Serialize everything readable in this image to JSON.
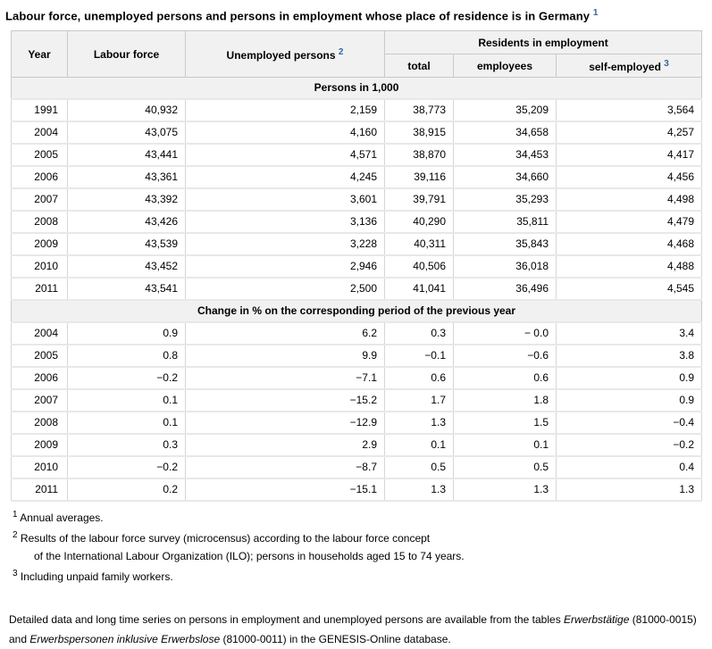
{
  "title": {
    "text": "Labour force, unemployed persons and persons in employment whose place of residence is in Germany",
    "footnote_ref": "1"
  },
  "table": {
    "columns": {
      "year": "Year",
      "labour_force": "Labour force",
      "unemployed": "Unemployed persons",
      "unemployed_ref": "2",
      "residents_group": "Residents in employment",
      "total": "total",
      "employees": "employees",
      "self_employed": "self-employed",
      "self_employed_ref": "3"
    },
    "sections": [
      {
        "label": "Persons in 1,000",
        "rows": [
          [
            "1991",
            "40,932",
            "2,159",
            "38,773",
            "35,209",
            "3,564"
          ],
          [
            "2004",
            "43,075",
            "4,160",
            "38,915",
            "34,658",
            "4,257"
          ],
          [
            "2005",
            "43,441",
            "4,571",
            "38,870",
            "34,453",
            "4,417"
          ],
          [
            "2006",
            "43,361",
            "4,245",
            "39,116",
            "34,660",
            "4,456"
          ],
          [
            "2007",
            "43,392",
            "3,601",
            "39,791",
            "35,293",
            "4,498"
          ],
          [
            "2008",
            "43,426",
            "3,136",
            "40,290",
            "35,811",
            "4,479"
          ],
          [
            "2009",
            "43,539",
            "3,228",
            "40,311",
            "35,843",
            "4,468"
          ],
          [
            "2010",
            "43,452",
            "2,946",
            "40,506",
            "36,018",
            "4,488"
          ],
          [
            "2011",
            "43,541",
            "2,500",
            "41,041",
            "36,496",
            "4,545"
          ]
        ]
      },
      {
        "label": "Change in % on the corresponding period of the previous year",
        "rows": [
          [
            "2004",
            "0.9",
            "6.2",
            "0.3",
            "− 0.0",
            "3.4"
          ],
          [
            "2005",
            "0.8",
            "9.9",
            "−0.1",
            "−0.6",
            "3.8"
          ],
          [
            "2006",
            "−0.2",
            "−7.1",
            "0.6",
            "0.6",
            "0.9"
          ],
          [
            "2007",
            "0.1",
            "−15.2",
            "1.7",
            "1.8",
            "0.9"
          ],
          [
            "2008",
            "0.1",
            "−12.9",
            "1.3",
            "1.5",
            "−0.4"
          ],
          [
            "2009",
            "0.3",
            "2.9",
            "0.1",
            "0.1",
            "−0.2"
          ],
          [
            "2010",
            "−0.2",
            "−8.7",
            "0.5",
            "0.5",
            "0.4"
          ],
          [
            "2011",
            "0.2",
            "−15.1",
            "1.3",
            "1.3",
            "1.3"
          ]
        ]
      }
    ]
  },
  "footnotes": [
    {
      "ref": "1",
      "text": "Annual averages.",
      "text2": ""
    },
    {
      "ref": "2",
      "text": "Results of the labour force survey (microcensus) according to the labour force concept",
      "text2": "of the International Labour Organization (ILO); persons in households aged 15 to 74 years."
    },
    {
      "ref": "3",
      "text": "Including unpaid family workers.",
      "text2": ""
    }
  ],
  "detail": {
    "parts": [
      {
        "text": "Detailed data and long time series on persons in employment and unemployed persons are available from the tables ",
        "italic": false
      },
      {
        "text": "Erwerbstätige",
        "italic": true
      },
      {
        "text": " (81000-0015) and ",
        "italic": false
      },
      {
        "text": "Erwerbspersonen inklusive Erwerbslose",
        "italic": true
      },
      {
        "text": " (81000-0011) in the GENESIS-Online database.",
        "italic": false
      }
    ]
  },
  "colors": {
    "footnote_ref_blue": "#336699",
    "header_background": "#f1f1f1",
    "grid_border": "#c9c9c9",
    "row_separator": "#e8e8e8"
  }
}
